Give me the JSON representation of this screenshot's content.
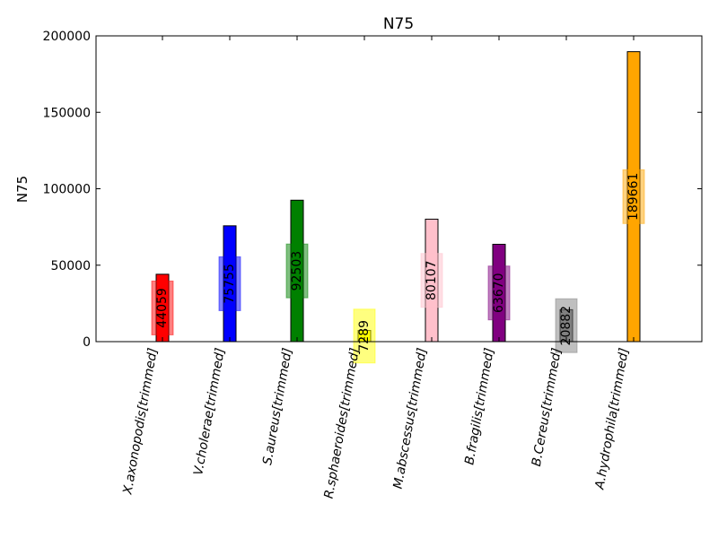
{
  "chart_data": {
    "type": "bar",
    "title": "N75",
    "xlabel": "",
    "ylabel": "N75",
    "ylim": [
      0,
      200000
    ],
    "yticks": [
      0,
      50000,
      100000,
      150000,
      200000
    ],
    "grid": false,
    "legend": "none",
    "categories": [
      "X.axonopodis[trimmed]",
      "V.cholerae[trimmed]",
      "S.aureus[trimmed]",
      "R.sphaeroides[trimmed]",
      "M.abscessus[trimmed]",
      "B.fragilis[trimmed]",
      "B.Cereus[trimmed]",
      "A.hydrophila[trimmed]"
    ],
    "values": [
      44059,
      75755,
      92503,
      7289,
      80107,
      63670,
      20882,
      189661
    ],
    "value_labels": [
      "44059",
      "75755",
      "92503",
      "7289",
      "80107",
      "63670",
      "20882",
      "189661"
    ],
    "colors": [
      "#ff0000",
      "#0000ff",
      "#008000",
      "#ffff00",
      "#ffc0cb",
      "#800080",
      "#808080",
      "#ffa500"
    ]
  }
}
